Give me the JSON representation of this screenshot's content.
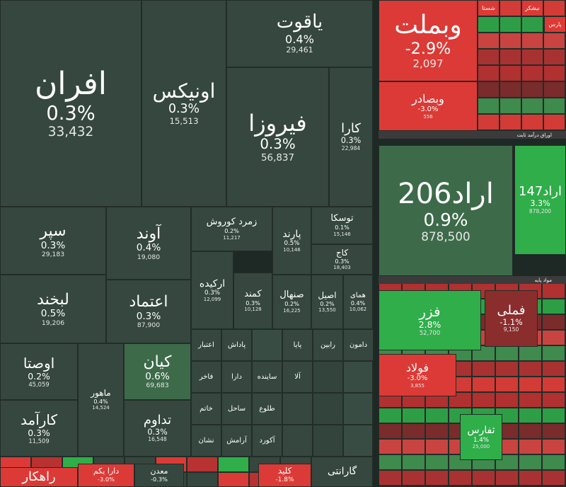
{
  "sectors": [
    "اوراق درآمد ثابت",
    "مواد پایه"
  ],
  "tiles": [
    {
      "name": "افران",
      "change": "0.3%",
      "value": "33,432"
    },
    {
      "name": "یاقوت",
      "change": "0.4%",
      "value": "29,461"
    },
    {
      "name": "اونیکس",
      "change": "0.3%",
      "value": "15,513"
    },
    {
      "name": "فیروزا",
      "change": "0.3%",
      "value": "56,837"
    },
    {
      "name": "کارا",
      "change": "0.3%",
      "value": "22,984"
    },
    {
      "name": "سپر",
      "change": "0.3%",
      "value": "29,183"
    },
    {
      "name": "آوند",
      "change": "0.4%",
      "value": "19,080"
    },
    {
      "name": "زمرد کوروش",
      "change": "0.2%",
      "value": "11,217"
    },
    {
      "name": "پارند",
      "change": "0.5%",
      "value": "10,146"
    },
    {
      "name": "توسکا",
      "change": "0.1%",
      "value": "15,146"
    },
    {
      "name": "کاج",
      "change": "0.3%",
      "value": "18,403"
    },
    {
      "name": "لبخند",
      "change": "0.5%",
      "value": "19,206"
    },
    {
      "name": "اعتماد",
      "change": "0.3%",
      "value": "87,900"
    },
    {
      "name": "ارکیده",
      "change": "0.3%",
      "value": "12,099"
    },
    {
      "name": "کمند",
      "change": "0.3%",
      "value": "10,128"
    },
    {
      "name": "صنهال",
      "change": "0.2%",
      "value": "16,225"
    },
    {
      "name": "اصیل",
      "change": "0.2%",
      "value": "13,550"
    },
    {
      "name": "همای",
      "change": "0.4%",
      "value": "10,062"
    },
    {
      "name": "اوصتا",
      "change": "0.2%",
      "value": "45,059"
    },
    {
      "name": "کارآمد",
      "change": "0.3%",
      "value": "11,509"
    },
    {
      "name": "ماهور",
      "change": "0.4%",
      "value": "14,524"
    },
    {
      "name": "کیان",
      "change": "0.6%",
      "value": "69,683"
    },
    {
      "name": "تداوم",
      "change": "0.3%",
      "value": "16,548"
    },
    {
      "name": "وبملت",
      "change": "-2.9%",
      "value": "2,097"
    },
    {
      "name": "وبصادر",
      "change": "-3.0%",
      "value": "556"
    },
    {
      "name": "اراد206",
      "change": "0.9%",
      "value": "878,500"
    },
    {
      "name": "اراد147",
      "change": "3.3%",
      "value": "878,200"
    },
    {
      "name": "فزر",
      "change": "2.8%",
      "value": "52,700"
    },
    {
      "name": "فملی",
      "change": "-1.1%",
      "value": "9,150"
    },
    {
      "name": "فولاد",
      "change": "-3.0%",
      "value": "3,855"
    },
    {
      "name": "ثفارس",
      "change": "1.4%",
      "value": "25,000"
    }
  ],
  "small_tiles": [
    "اعتبار",
    "پاداش",
    "پایا",
    "رابین",
    "دامون",
    "فاخر",
    "دارا",
    "ساینده",
    "آلا",
    "خاتم",
    "ساحل",
    "طلوع",
    "آرامش",
    "نشان",
    "آکورد",
    "شستا",
    "نیشکر",
    "پارس"
  ],
  "strip": [
    {
      "name": "راهکار"
    },
    {
      "name": "دارا یکم",
      "change": "-3.0%"
    },
    {
      "name": "معدن",
      "change": "-0.3%"
    },
    {
      "name": "کلید",
      "change": "-1.8%"
    },
    {
      "name": "گارانتی"
    }
  ]
}
